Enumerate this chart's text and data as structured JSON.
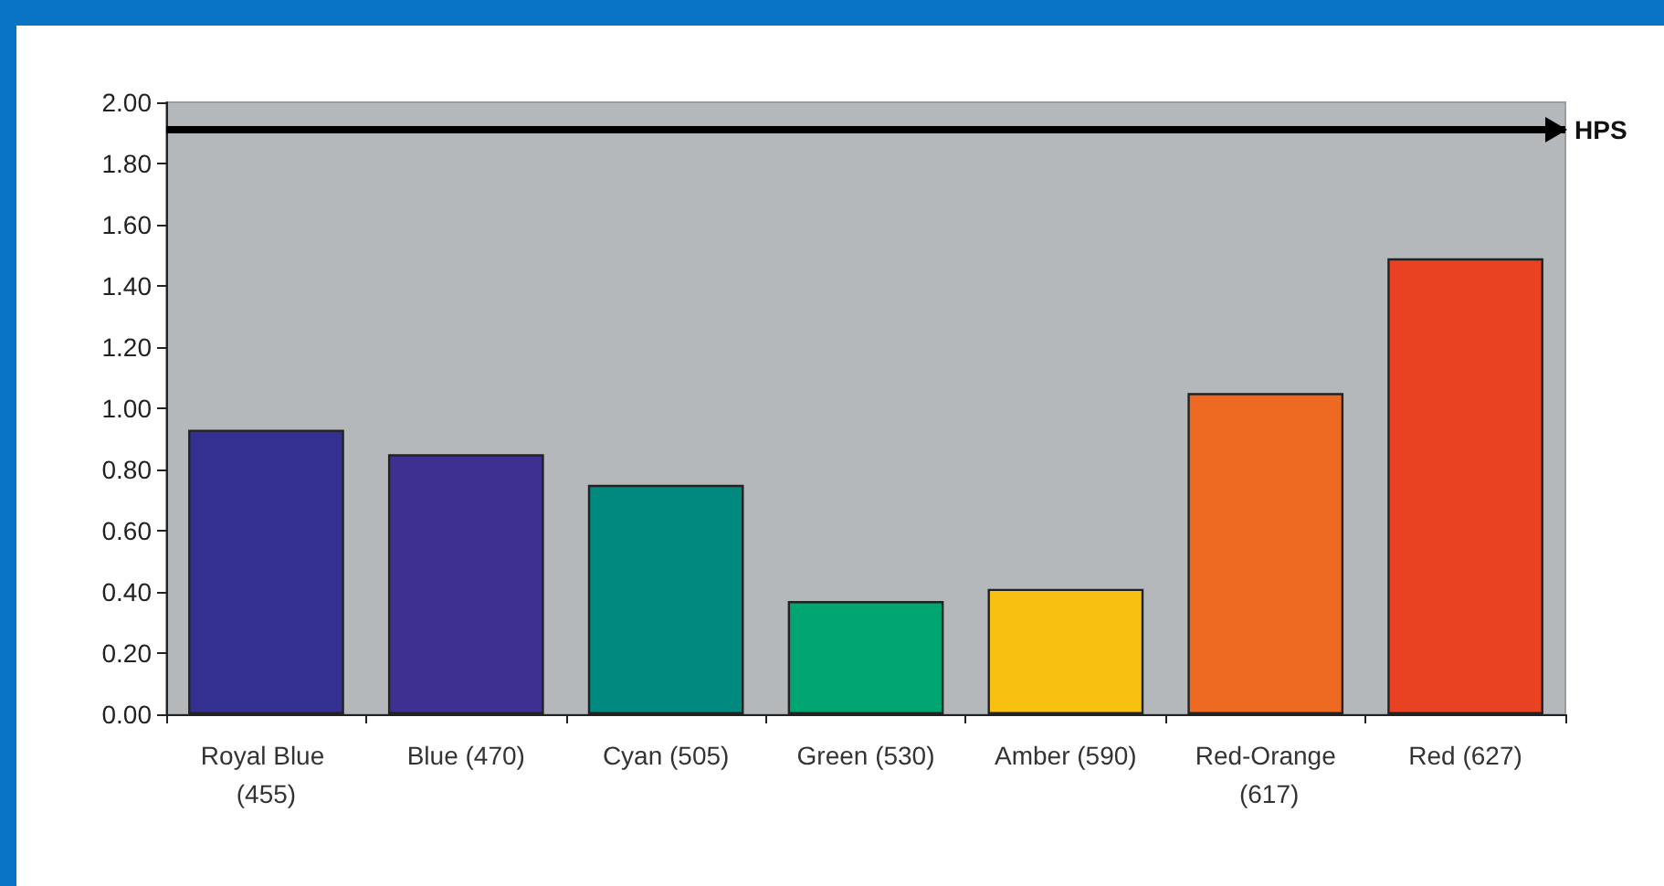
{
  "chart_data": {
    "type": "bar",
    "categories": [
      "Royal Blue (455)",
      "Blue (470)",
      "Cyan (505)",
      "Green (530)",
      "Amber (590)",
      "Red-Orange (617)",
      "Red (627)"
    ],
    "values": [
      0.93,
      0.85,
      0.75,
      0.37,
      0.41,
      1.05,
      1.49
    ],
    "colors": [
      "#343092",
      "#3d3090",
      "#00897f",
      "#00a571",
      "#f8c112",
      "#ee6a22",
      "#e94222"
    ],
    "ylim": [
      0,
      2
    ],
    "yticks": [
      {
        "value": 0,
        "label": "0.00"
      },
      {
        "value": 0.2,
        "label": "0.20"
      },
      {
        "value": 0.4,
        "label": "0.40"
      },
      {
        "value": 0.6,
        "label": "0.60"
      },
      {
        "value": 0.8,
        "label": "0.80"
      },
      {
        "value": 1,
        "label": "1.00"
      },
      {
        "value": 1.2,
        "label": "1.20"
      },
      {
        "value": 1.4,
        "label": "1.40"
      },
      {
        "value": 1.6,
        "label": "1.60"
      },
      {
        "value": 1.8,
        "label": "1.80"
      },
      {
        "value": 2,
        "label": "2.00"
      }
    ],
    "ref_lines": [
      {
        "axis": "y",
        "value": 1.91,
        "label": "HPS",
        "color": "#000000"
      }
    ],
    "grid": false
  }
}
